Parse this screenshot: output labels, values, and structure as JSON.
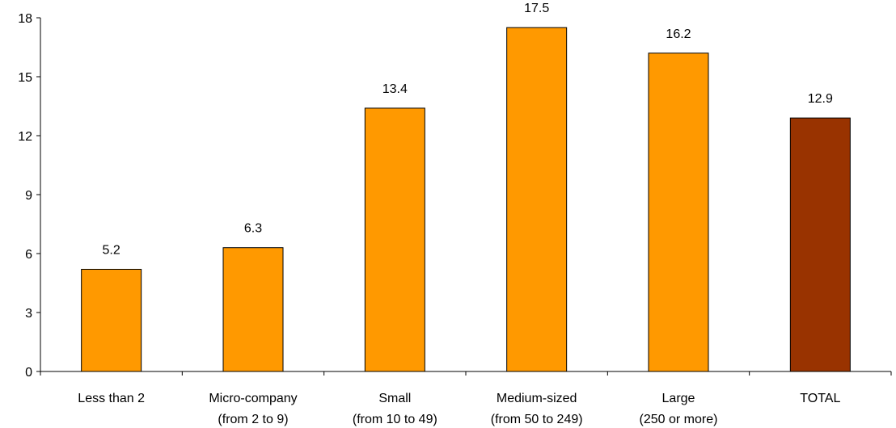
{
  "chart_data": {
    "type": "bar",
    "categories": [
      [
        "Less than 2"
      ],
      [
        "Micro-company",
        "(from 2 to 9)"
      ],
      [
        "Small",
        "(from 10 to 49)"
      ],
      [
        "Medium-sized",
        "(from 50  to 249)"
      ],
      [
        "Large",
        "(250 or more)"
      ],
      [
        "TOTAL"
      ]
    ],
    "values": [
      5.2,
      6.3,
      13.4,
      17.5,
      16.2,
      12.9
    ],
    "value_labels": [
      "5.2",
      "6.3",
      "13.4",
      "17.5",
      "16.2",
      "12.9"
    ],
    "yticks": [
      0,
      3,
      6,
      9,
      12,
      15,
      18
    ],
    "ylim": [
      0,
      18
    ],
    "grid": false,
    "legend": "none",
    "colors": {
      "bar": "#FF9900",
      "highlight": "#993300",
      "highlight_index": 5,
      "outline": "#000000",
      "axis": "#000000"
    }
  }
}
